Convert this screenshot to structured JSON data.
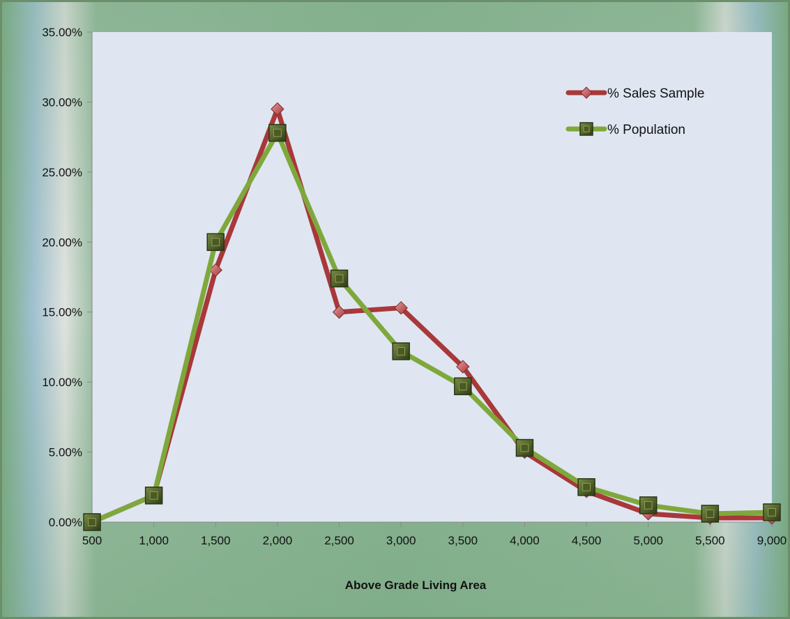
{
  "chart_data": {
    "type": "line",
    "title": "",
    "xlabel": "Above Grade Living Area",
    "ylabel": "",
    "categories": [
      "500",
      "1,000",
      "1,500",
      "2,000",
      "2,500",
      "3,000",
      "3,500",
      "4,000",
      "4,500",
      "5,000",
      "5,500",
      "9,000"
    ],
    "y_ticks": [
      "0.00%",
      "5.00%",
      "10.00%",
      "15.00%",
      "20.00%",
      "25.00%",
      "30.00%",
      "35.00%"
    ],
    "ylim": [
      0,
      35
    ],
    "grid": false,
    "legend_position": "top-right",
    "series": [
      {
        "name": "% Sales Sample",
        "color": "#a8383a",
        "marker": "diamond",
        "values": [
          0.0,
          1.9,
          18.0,
          29.5,
          15.0,
          15.3,
          11.1,
          5.0,
          2.2,
          0.6,
          0.3,
          0.3
        ]
      },
      {
        "name": "% Population",
        "color": "#7fa83c",
        "marker": "square",
        "values": [
          0.0,
          1.9,
          20.0,
          27.8,
          17.4,
          12.2,
          9.7,
          5.3,
          2.5,
          1.2,
          0.6,
          0.7
        ]
      }
    ],
    "colors": {
      "plot_background": "#dfe6f1",
      "axis_line": "#888888"
    }
  }
}
